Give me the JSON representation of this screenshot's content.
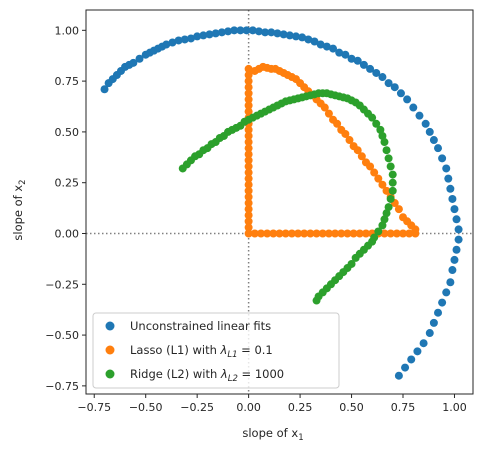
{
  "chart_data": {
    "type": "scatter",
    "title": "",
    "xlabel": "slope of x",
    "xlabel_sub": "1",
    "ylabel": "slope of x",
    "ylabel_sub": "2",
    "xlim": [
      -0.79,
      1.09
    ],
    "ylim": [
      -0.79,
      1.1
    ],
    "xticks": [
      -0.75,
      -0.5,
      -0.25,
      0.0,
      0.25,
      0.5,
      0.75,
      1.0
    ],
    "xtick_labels": [
      "−0.75",
      "−0.50",
      "−0.25",
      "0.00",
      "0.25",
      "0.50",
      "0.75",
      "1.00"
    ],
    "yticks": [
      -0.75,
      -0.5,
      -0.25,
      0.0,
      0.25,
      0.5,
      0.75,
      1.0
    ],
    "ytick_labels": [
      "−0.75",
      "−0.50",
      "−0.25",
      "0.00",
      "0.25",
      "0.50",
      "0.75",
      "1.00"
    ],
    "reference_lines": {
      "x": 0,
      "y": 0,
      "style": "dotted",
      "color": "#808080"
    },
    "legend": {
      "placement": "lower-left"
    },
    "series": [
      {
        "name": "Unconstrained linear fits",
        "legend_text": "Unconstrained linear fits",
        "color": "#1f77b4",
        "x": [
          -0.7,
          -0.68,
          -0.66,
          -0.64,
          -0.62,
          -0.6,
          -0.58,
          -0.56,
          -0.53,
          -0.5,
          -0.48,
          -0.46,
          -0.44,
          -0.42,
          -0.4,
          -0.37,
          -0.34,
          -0.31,
          -0.28,
          -0.25,
          -0.22,
          -0.19,
          -0.16,
          -0.13,
          -0.1,
          -0.07,
          -0.04,
          -0.01,
          0.02,
          0.05,
          0.08,
          0.11,
          0.14,
          0.17,
          0.2,
          0.23,
          0.26,
          0.29,
          0.32,
          0.35,
          0.38,
          0.41,
          0.44,
          0.47,
          0.5,
          0.53,
          0.56,
          0.59,
          0.62,
          0.65,
          0.68,
          0.71,
          0.74,
          0.77,
          0.8,
          0.83,
          0.86,
          0.88,
          0.9,
          0.92,
          0.94,
          0.96,
          0.97,
          0.98,
          0.99,
          1.0,
          1.01,
          1.02,
          1.02,
          1.01,
          1.0,
          0.99,
          0.98,
          0.96,
          0.94,
          0.92,
          0.9,
          0.88,
          0.85,
          0.82,
          0.79,
          0.76,
          0.73
        ],
        "y": [
          0.71,
          0.74,
          0.76,
          0.78,
          0.8,
          0.82,
          0.83,
          0.84,
          0.86,
          0.88,
          0.89,
          0.9,
          0.91,
          0.92,
          0.93,
          0.94,
          0.95,
          0.955,
          0.96,
          0.97,
          0.975,
          0.98,
          0.985,
          0.99,
          0.995,
          1.0,
          1.0,
          1.0,
          1.0,
          0.995,
          0.99,
          0.99,
          0.985,
          0.98,
          0.975,
          0.97,
          0.965,
          0.955,
          0.945,
          0.93,
          0.92,
          0.91,
          0.89,
          0.88,
          0.86,
          0.85,
          0.83,
          0.81,
          0.79,
          0.77,
          0.74,
          0.72,
          0.69,
          0.66,
          0.62,
          0.58,
          0.54,
          0.5,
          0.46,
          0.42,
          0.37,
          0.32,
          0.27,
          0.22,
          0.17,
          0.12,
          0.07,
          0.02,
          -0.03,
          -0.08,
          -0.13,
          -0.18,
          -0.24,
          -0.29,
          -0.34,
          -0.39,
          -0.44,
          -0.49,
          -0.54,
          -0.58,
          -0.62,
          -0.66,
          -0.7
        ]
      },
      {
        "name": "Lasso (L1)",
        "legend_text": "Lasso (L1) with ",
        "legend_math_sub": "L1",
        "legend_math_value": "= 0.1",
        "color": "#ff7f0e",
        "x": [
          0.0,
          0.0,
          0.0,
          0.0,
          0.0,
          0.0,
          0.0,
          0.0,
          0.0,
          0.0,
          0.0,
          0.0,
          0.0,
          0.0,
          0.0,
          0.0,
          0.0,
          0.0,
          0.0,
          0.0,
          0.0,
          0.0,
          0.0,
          0.0,
          0.0,
          0.0,
          0.0,
          0.0,
          0.03,
          0.06,
          0.09,
          0.12,
          0.15,
          0.18,
          0.21,
          0.24,
          0.27,
          0.3,
          0.33,
          0.36,
          0.39,
          0.42,
          0.45,
          0.48,
          0.51,
          0.54,
          0.57,
          0.6,
          0.63,
          0.66,
          0.69,
          0.72,
          0.75,
          0.78,
          0.81,
          0.81,
          0.79,
          0.77,
          0.75,
          0.73,
          0.71,
          0.69,
          0.67,
          0.65,
          0.63,
          0.61,
          0.59,
          0.57,
          0.55,
          0.53,
          0.51,
          0.49,
          0.47,
          0.45,
          0.43,
          0.41,
          0.39,
          0.37,
          0.35,
          0.33,
          0.31,
          0.29,
          0.27,
          0.25,
          0.23,
          0.21,
          0.19,
          0.17,
          0.15,
          0.13,
          0.11,
          0.09,
          0.07,
          0.05,
          0.03
        ],
        "y": [
          0.81,
          0.78,
          0.75,
          0.72,
          0.69,
          0.66,
          0.63,
          0.6,
          0.57,
          0.54,
          0.51,
          0.48,
          0.45,
          0.42,
          0.39,
          0.36,
          0.33,
          0.3,
          0.27,
          0.24,
          0.21,
          0.18,
          0.15,
          0.12,
          0.09,
          0.06,
          0.03,
          0.0,
          0.0,
          0.0,
          0.0,
          0.0,
          0.0,
          0.0,
          0.0,
          0.0,
          0.0,
          0.0,
          0.0,
          0.0,
          0.0,
          0.0,
          0.0,
          0.0,
          0.0,
          0.0,
          0.0,
          0.0,
          0.0,
          0.0,
          0.0,
          0.0,
          0.0,
          0.0,
          0.0,
          0.02,
          0.04,
          0.06,
          0.08,
          0.12,
          0.15,
          0.18,
          0.21,
          0.24,
          0.27,
          0.3,
          0.33,
          0.35,
          0.38,
          0.41,
          0.43,
          0.46,
          0.49,
          0.51,
          0.54,
          0.56,
          0.59,
          0.62,
          0.64,
          0.66,
          0.68,
          0.7,
          0.72,
          0.74,
          0.76,
          0.77,
          0.78,
          0.79,
          0.8,
          0.81,
          0.81,
          0.815,
          0.82,
          0.81,
          0.8
        ]
      },
      {
        "name": "Ridge (L2)",
        "legend_text": "Ridge (L2) with ",
        "legend_math_sub": "L2",
        "legend_math_value": "= 1000",
        "color": "#2ca02c",
        "x": [
          -0.32,
          -0.3,
          -0.28,
          -0.26,
          -0.24,
          -0.22,
          -0.2,
          -0.18,
          -0.16,
          -0.14,
          -0.12,
          -0.1,
          -0.08,
          -0.06,
          -0.04,
          -0.02,
          0.0,
          0.02,
          0.04,
          0.06,
          0.08,
          0.1,
          0.12,
          0.14,
          0.16,
          0.18,
          0.2,
          0.22,
          0.24,
          0.26,
          0.28,
          0.3,
          0.32,
          0.34,
          0.36,
          0.38,
          0.4,
          0.42,
          0.44,
          0.46,
          0.48,
          0.5,
          0.52,
          0.54,
          0.56,
          0.58,
          0.6,
          0.62,
          0.64,
          0.65,
          0.66,
          0.67,
          0.68,
          0.69,
          0.7,
          0.7,
          0.7,
          0.69,
          0.68,
          0.67,
          0.66,
          0.65,
          0.63,
          0.61,
          0.6,
          0.58,
          0.56,
          0.54,
          0.52,
          0.5,
          0.48,
          0.46,
          0.44,
          0.42,
          0.4,
          0.38,
          0.36,
          0.34,
          0.33
        ],
        "y": [
          0.32,
          0.34,
          0.36,
          0.38,
          0.39,
          0.41,
          0.42,
          0.44,
          0.45,
          0.47,
          0.48,
          0.5,
          0.51,
          0.52,
          0.53,
          0.55,
          0.56,
          0.57,
          0.58,
          0.59,
          0.6,
          0.61,
          0.62,
          0.63,
          0.64,
          0.65,
          0.655,
          0.66,
          0.665,
          0.67,
          0.675,
          0.68,
          0.685,
          0.69,
          0.69,
          0.69,
          0.685,
          0.68,
          0.675,
          0.67,
          0.665,
          0.655,
          0.645,
          0.63,
          0.61,
          0.59,
          0.57,
          0.54,
          0.51,
          0.48,
          0.45,
          0.41,
          0.37,
          0.33,
          0.29,
          0.25,
          0.21,
          0.17,
          0.13,
          0.1,
          0.07,
          0.04,
          0.01,
          -0.02,
          -0.04,
          -0.06,
          -0.08,
          -0.1,
          -0.12,
          -0.15,
          -0.17,
          -0.19,
          -0.21,
          -0.23,
          -0.25,
          -0.27,
          -0.29,
          -0.31,
          -0.33
        ]
      }
    ]
  }
}
